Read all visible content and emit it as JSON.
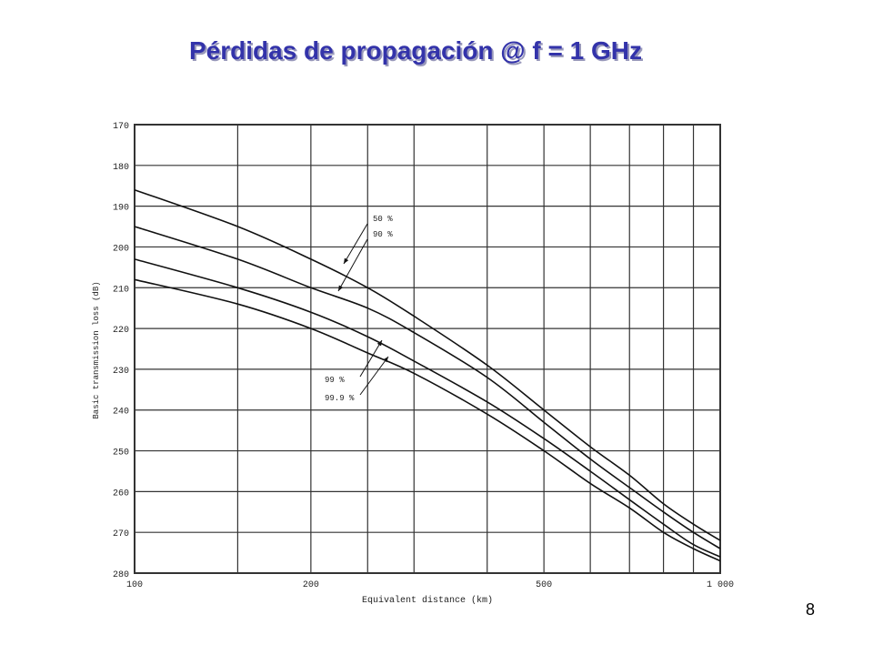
{
  "slide": {
    "title": "Pérdidas de propagación @ f = 1 GHz",
    "page_number": "8"
  },
  "colors": {
    "title": "#3333aa",
    "title_shadow": "#9999bb",
    "grid": "#333333",
    "curves": "#111111"
  },
  "chart_data": {
    "type": "line",
    "title": "",
    "xlabel": "Equivalent distance (km)",
    "ylabel": "Basic transmission loss (dB)",
    "x_scale": "log",
    "xlim": [
      100,
      1000
    ],
    "ylim": [
      170,
      280
    ],
    "y_inverted": true,
    "grid": true,
    "x_ticks": [
      100,
      200,
      500,
      1000
    ],
    "x_tick_labels": [
      "100",
      "200",
      "500",
      "1 000"
    ],
    "x_grid": [
      100,
      150,
      200,
      250,
      300,
      400,
      500,
      600,
      700,
      800,
      900,
      1000
    ],
    "y_ticks": [
      170,
      180,
      190,
      200,
      210,
      220,
      230,
      240,
      250,
      260,
      270,
      280
    ],
    "y_tick_labels": [
      "170",
      "180",
      "190",
      "200",
      "210",
      "220",
      "230",
      "240",
      "250",
      "260",
      "270",
      "280"
    ],
    "series": [
      {
        "name": "50 %",
        "x": [
          100,
          150,
          200,
          250,
          300,
          400,
          500,
          600,
          700,
          800,
          900,
          1000
        ],
        "y": [
          186,
          195,
          203,
          210,
          217,
          229,
          240,
          249,
          256,
          263,
          268,
          272
        ]
      },
      {
        "name": "90 %",
        "x": [
          100,
          150,
          200,
          250,
          300,
          400,
          500,
          600,
          700,
          800,
          900,
          1000
        ],
        "y": [
          195,
          203,
          210,
          215,
          221,
          232,
          243,
          252,
          259,
          265,
          270,
          274
        ]
      },
      {
        "name": "99 %",
        "x": [
          100,
          150,
          200,
          250,
          300,
          400,
          500,
          600,
          700,
          800,
          900,
          1000
        ],
        "y": [
          203,
          210,
          216,
          222,
          228,
          238,
          247,
          255,
          262,
          268,
          273,
          276
        ]
      },
      {
        "name": "99.9 %",
        "x": [
          100,
          150,
          200,
          250,
          300,
          400,
          500,
          600,
          700,
          800,
          900,
          1000
        ],
        "y": [
          208,
          214,
          220,
          226,
          231,
          241,
          250,
          258,
          264,
          270,
          274,
          277
        ]
      }
    ],
    "annotations": [
      {
        "text": "50 %"
      },
      {
        "text": "90 %"
      },
      {
        "text": "99 %"
      },
      {
        "text": "99.9 %"
      }
    ]
  }
}
